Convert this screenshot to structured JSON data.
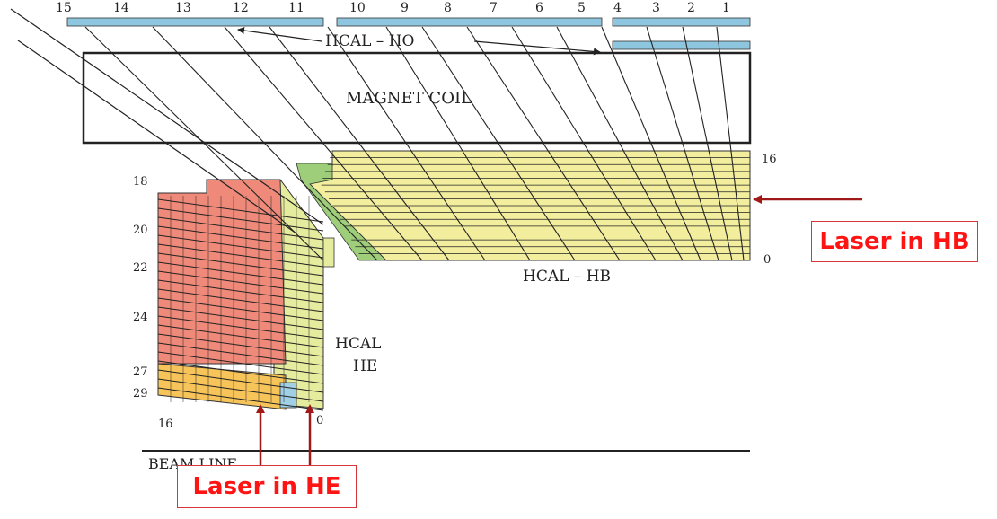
{
  "top_numbers": [
    "15",
    "14",
    "13",
    "12",
    "11",
    "10",
    "9",
    "8",
    "7",
    "6",
    "5",
    "4",
    "3",
    "2",
    "1"
  ],
  "labels": {
    "hcal_ho": "HCAL – HO",
    "magnet_coil": "MAGNET  COIL",
    "hcal_hb": "HCAL – HB",
    "hcal_he_line1": "HCAL",
    "hcal_he_line2": "HE",
    "beam_line": "BEAM LINE"
  },
  "hb_scale": {
    "top": "16",
    "bottom": "0"
  },
  "he_scale": [
    "18",
    "20",
    "22",
    "24",
    "27",
    "29"
  ],
  "he_bottom": {
    "left": "16",
    "right": "0"
  },
  "callouts": {
    "laser_hb": "Laser in HB",
    "laser_he": "Laser in HE"
  },
  "colors": {
    "ho_tile": "#8ec6df",
    "hb_fill": "#f2ee9e",
    "he_red": "#ef8a7a",
    "he_yellow": "#e6ec9e",
    "he_orange": "#f7c45a",
    "he_blue": "#9fd0e6",
    "green": "#9fce7a",
    "arrow": "#a01818",
    "callout_text": "#ff1414"
  }
}
